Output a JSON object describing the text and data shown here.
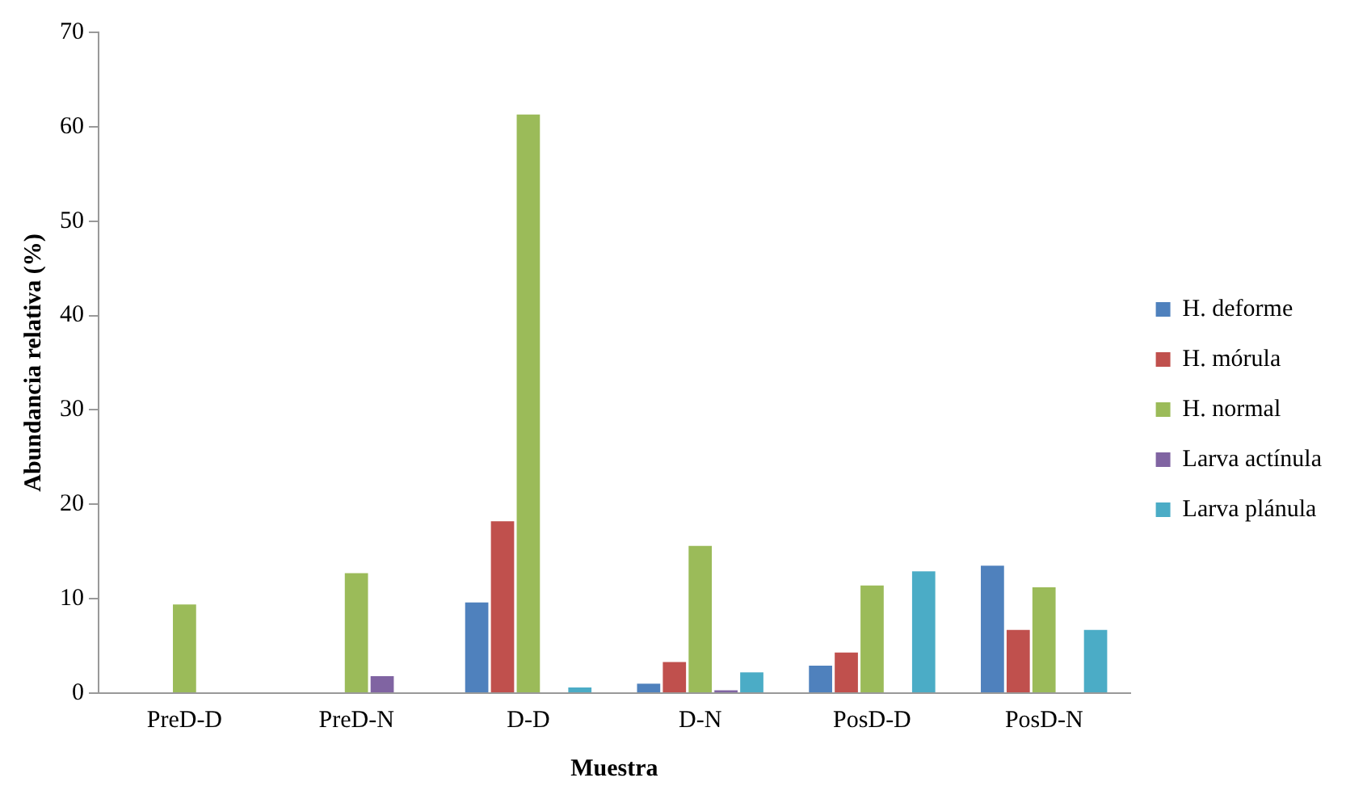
{
  "chart_data": {
    "type": "bar",
    "xlabel": "Muestra",
    "ylabel": "Abundancia relativa (%)",
    "categories": [
      "PreD-D",
      "PreD-N",
      "D-D",
      "D-N",
      "PosD-D",
      "PosD-N"
    ],
    "series": [
      {
        "name": "H. deforme",
        "color": "#4f81bd",
        "values": [
          0,
          0,
          9.6,
          1.0,
          2.9,
          13.5
        ]
      },
      {
        "name": "H. mórula",
        "color": "#c0504d",
        "values": [
          0,
          0,
          18.2,
          3.3,
          4.3,
          6.7
        ]
      },
      {
        "name": "H. normal",
        "color": "#9bbb59",
        "values": [
          9.4,
          12.7,
          61.3,
          15.6,
          11.4,
          11.2
        ]
      },
      {
        "name": "Larva actínula",
        "color": "#8064a2",
        "values": [
          0,
          1.8,
          0,
          0.3,
          0,
          0
        ]
      },
      {
        "name": "Larva plánula",
        "color": "#4bacc6",
        "values": [
          0,
          0,
          0.6,
          2.2,
          12.9,
          6.7
        ]
      }
    ],
    "ylim": [
      0,
      70
    ],
    "yticks": [
      0,
      10,
      20,
      30,
      40,
      50,
      60,
      70
    ],
    "grid": false,
    "legend": "right"
  }
}
